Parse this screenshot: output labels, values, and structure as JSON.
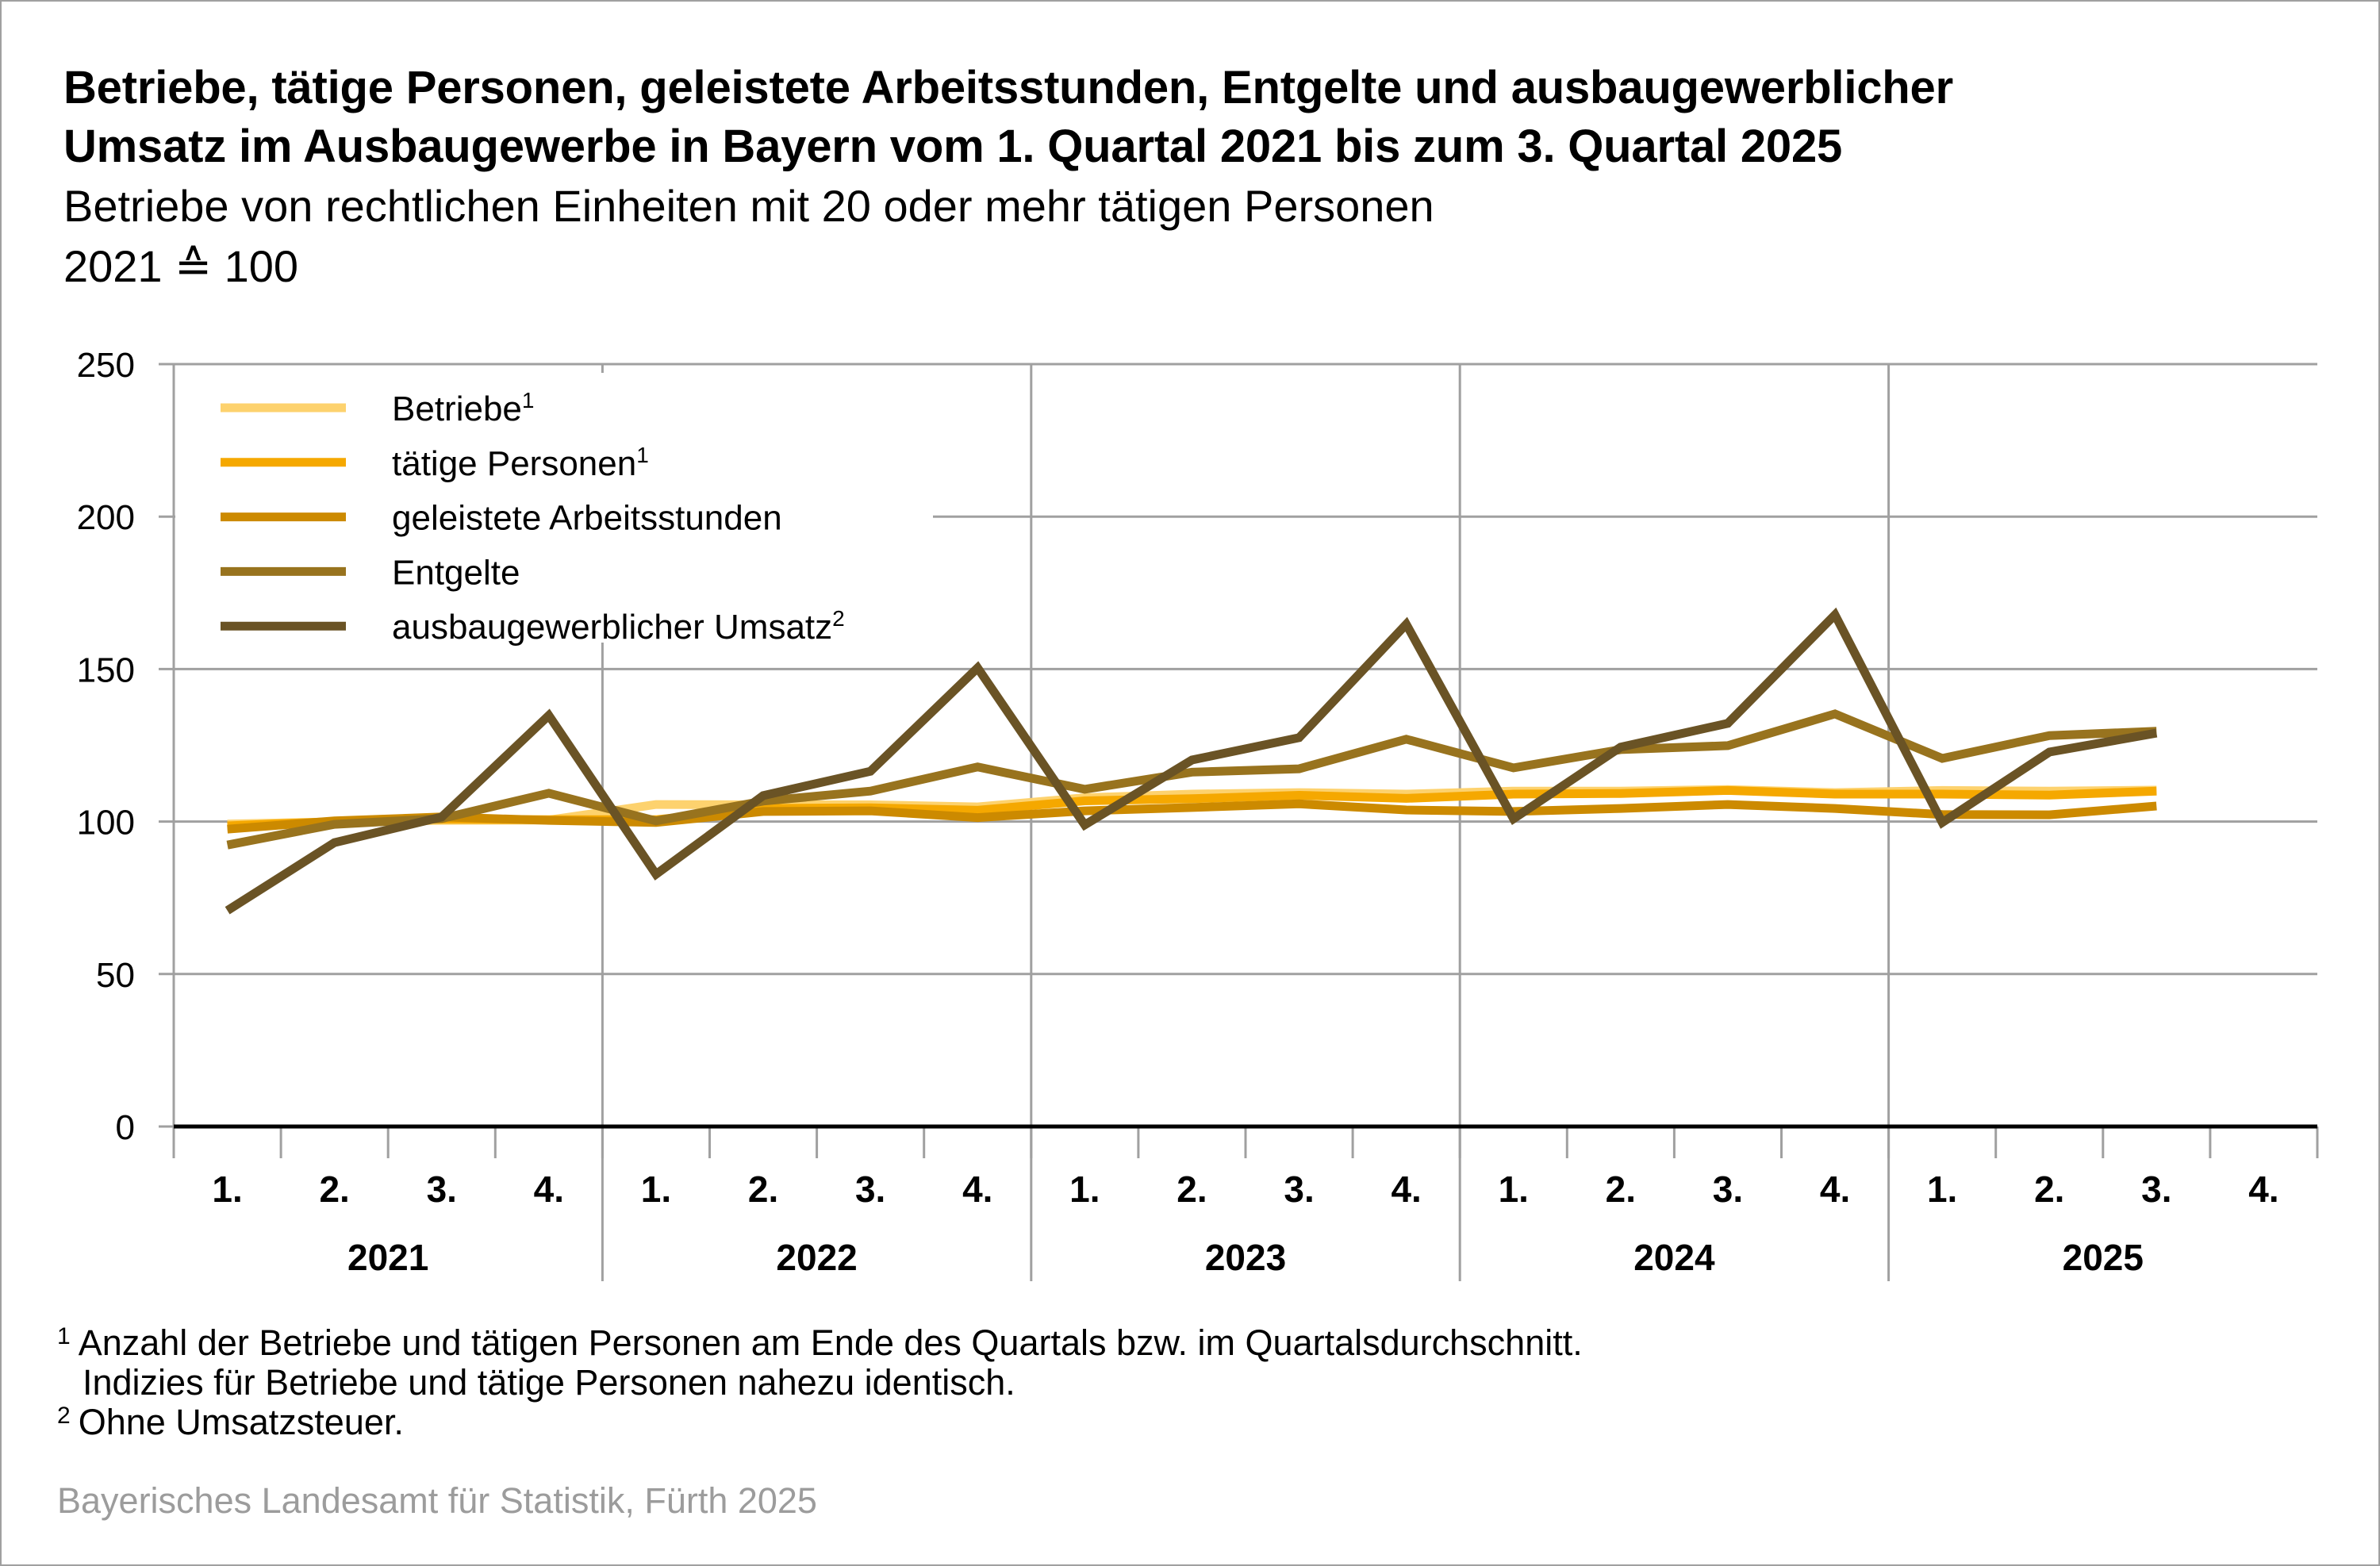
{
  "title_line1": "Betriebe, tätige Personen, geleistete Arbeitsstunden, Entgelte und ausbaugewerblicher",
  "title_line2": "Umsatz im Ausbaugewerbe in Bayern vom 1. Quartal 2021 bis zum 3. Quartal 2025",
  "subtitle_line1": "Betriebe von rechtlichen Einheiten mit 20 oder mehr tätigen Personen",
  "subtitle_line2": "2021 ≙ 100",
  "footnotes": [
    {
      "marker": "1",
      "text": "Anzahl der Betriebe und tätigen Personen am Ende des Quartals bzw. im Quartalsdurchschnitt."
    },
    {
      "marker": "",
      "text": "Indizies für Betriebe und tätige Personen nahezu identisch."
    },
    {
      "marker": "2",
      "text": "Ohne Umsatzsteuer."
    }
  ],
  "source": "Bayerisches Landesamt für Statistik, Fürth 2025",
  "chart_data": {
    "type": "line",
    "title": "Betriebe, tätige Personen, geleistete Arbeitsstunden, Entgelte und ausbaugewerblicher Umsatz im Ausbaugewerbe in Bayern vom 1. Quartal 2021 bis zum 3. Quartal 2025",
    "subtitle": "Betriebe von rechtlichen Einheiten mit 20 oder mehr tätigen Personen; 2021 ≙ 100",
    "xlabel": "",
    "ylabel": "",
    "ylim": [
      0,
      250
    ],
    "yticks": [
      "0",
      "50",
      "100",
      "150",
      "200",
      "250"
    ],
    "ytick_values": [
      0,
      50,
      100,
      150,
      200,
      250
    ],
    "grid": true,
    "legend_position": "top-left",
    "years": [
      "2021",
      "2022",
      "2023",
      "2024",
      "2025"
    ],
    "quarter_labels": [
      "1.",
      "2.",
      "3.",
      "4."
    ],
    "categories": [
      "2021 Q1",
      "2021 Q2",
      "2021 Q3",
      "2021 Q4",
      "2022 Q1",
      "2022 Q2",
      "2022 Q3",
      "2022 Q4",
      "2023 Q1",
      "2023 Q2",
      "2023 Q3",
      "2023 Q4",
      "2024 Q1",
      "2024 Q2",
      "2024 Q3",
      "2024 Q4",
      "2025 Q1",
      "2025 Q2",
      "2025 Q3",
      "2025 Q4"
    ],
    "series": [
      {
        "name": "Betriebe",
        "sup": "1",
        "color": "#FDD26E",
        "values": [
          99.2,
          99.9,
          100.4,
          100.5,
          105.6,
          105.5,
          105.5,
          104.8,
          107.8,
          109.0,
          109.5,
          109.0,
          110.0,
          110.0,
          110.5,
          109.5,
          110.2,
          110.0,
          110.3,
          null
        ]
      },
      {
        "name": "tätige Personen",
        "sup": "1",
        "color": "#F5A800",
        "values": [
          98.6,
          100.0,
          100.8,
          100.6,
          100.6,
          104.3,
          104.5,
          103.7,
          106.8,
          107.5,
          108.6,
          107.6,
          109.0,
          109.2,
          110.2,
          109.0,
          109.0,
          108.7,
          110.0,
          null
        ]
      },
      {
        "name": "geleistete Arbeitsstunden",
        "sup": "",
        "color": "#CC8A00",
        "values": [
          97.5,
          100.2,
          101.5,
          100.4,
          99.7,
          103.3,
          103.5,
          101.3,
          103.5,
          104.6,
          105.8,
          103.8,
          103.3,
          104.3,
          105.6,
          104.3,
          102.3,
          102.2,
          105.1,
          null
        ]
      },
      {
        "name": "Entgelte",
        "sup": "",
        "color": "#98731E",
        "values": [
          92.3,
          99.1,
          101.0,
          109.3,
          100.2,
          106.7,
          110.0,
          117.9,
          110.6,
          116.2,
          117.3,
          127.0,
          117.6,
          123.6,
          124.9,
          135.3,
          120.7,
          128.2,
          129.6,
          null
        ]
      },
      {
        "name": "ausbaugewerblicher Umsatz",
        "sup": "2",
        "color": "#6A5325",
        "values": [
          70.8,
          93.1,
          101.5,
          134.8,
          82.7,
          108.5,
          116.5,
          150.4,
          98.9,
          120.2,
          127.5,
          164.7,
          100.9,
          124.4,
          132.2,
          167.8,
          99.7,
          122.8,
          129.0,
          null
        ]
      }
    ]
  }
}
